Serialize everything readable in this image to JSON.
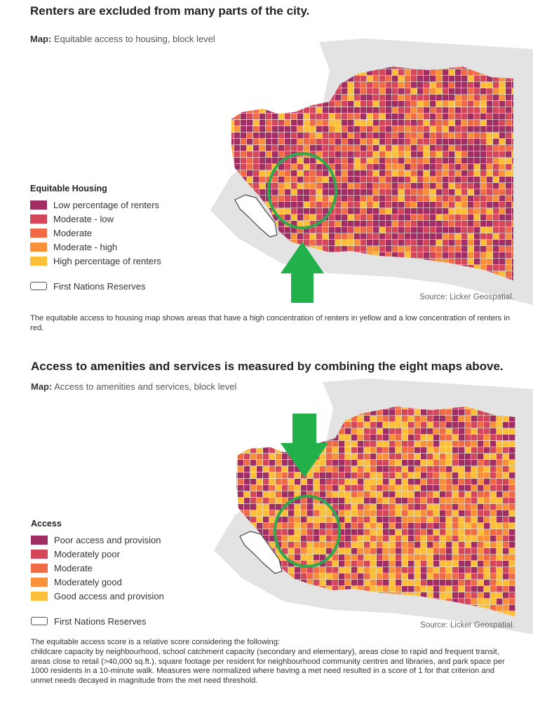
{
  "panel1": {
    "title": "Renters are excluded from many parts of the city.",
    "subtitle_prefix": "Map:",
    "subtitle": "Equitable access to housing, block level",
    "legend_title": "Equitable Housing",
    "legend": [
      {
        "label": "Low percentage of renters",
        "color": "#a02e62"
      },
      {
        "label": "Moderate - low",
        "color": "#d44659"
      },
      {
        "label": "Moderate",
        "color": "#f06a45"
      },
      {
        "label": "Moderate - high",
        "color": "#f8913a"
      },
      {
        "label": "High percentage of renters",
        "color": "#fbbf3a"
      }
    ],
    "reserves_label": "First Nations Reserves",
    "source": "Source: Licker Geospatial.",
    "caption": "The equitable access to housing map shows areas that have a high concentration of renters in yellow and a low concentration of renters in red."
  },
  "panel2": {
    "title": "Access to amenities and services is measured by combining the eight maps above.",
    "subtitle_prefix": "Map:",
    "subtitle": "Access to amenities and services, block level",
    "legend_title": "Access",
    "legend": [
      {
        "label": "Poor access and provision",
        "color": "#a02e62"
      },
      {
        "label": "Moderately poor",
        "color": "#d44659"
      },
      {
        "label": "Moderate",
        "color": "#f06a45"
      },
      {
        "label": "Moderately good",
        "color": "#f8913a"
      },
      {
        "label": "Good access and provision",
        "color": "#fbbf3a"
      }
    ],
    "reserves_label": "First Nations Reserves",
    "source": "Source: Licker Geospatial.",
    "caption_lines": [
      "The equitable access score is a relative score considering the following:",
      "childcare capacity by neighbourhood, school catchment capacity (secondary and elementary), areas close to rapid and frequent transit, areas close to retail (>40,000 sq.ft.), square footage per resident for neighbourhood community centres and libraries, and park space per 1000 residents in a 10-minute walk. Measures were normalized where having a met need resulted in a score of 1 for that criterion and unmet needs decayed in magnitude from the met need threshold."
    ]
  },
  "colors": {
    "highlight_circle": "#2fa84f",
    "arrow": "#22b04a",
    "land_background": "#dedede",
    "water": "#ffffff"
  }
}
